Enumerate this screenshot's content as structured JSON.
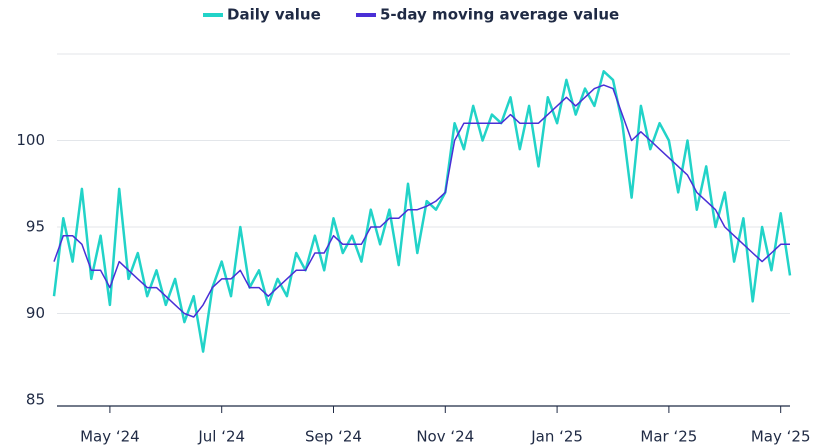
{
  "chart_data": {
    "type": "line",
    "categories": [
      null,
      null,
      null,
      null,
      null,
      null,
      "May ‘24",
      null,
      null,
      null,
      null,
      null,
      null,
      null,
      null,
      null,
      null,
      null,
      "Jul ‘24",
      null,
      null,
      null,
      null,
      null,
      null,
      null,
      null,
      null,
      null,
      null,
      "Sep ‘24",
      null,
      null,
      null,
      null,
      null,
      null,
      null,
      null,
      null,
      null,
      null,
      "Nov ‘24",
      null,
      null,
      null,
      null,
      null,
      null,
      null,
      null,
      null,
      null,
      null,
      "Jan ‘25",
      null,
      null,
      null,
      null,
      null,
      null,
      null,
      null,
      null,
      null,
      null,
      "Mar ‘25",
      null,
      null,
      null,
      null,
      null,
      null,
      null,
      null,
      null,
      null,
      null,
      "May ‘25",
      null
    ],
    "series": [
      {
        "name": "Daily value",
        "color": "#22d3c8",
        "values": [
          91,
          95.5,
          93,
          97.2,
          92,
          94.5,
          90.5,
          97.2,
          92,
          93.5,
          91,
          92.5,
          90.5,
          92,
          89.5,
          91,
          87.8,
          91.5,
          93,
          91,
          95,
          91.5,
          92.5,
          90.5,
          92,
          91,
          93.5,
          92.5,
          94.5,
          92.5,
          95.5,
          93.5,
          94.5,
          93,
          96,
          94,
          96,
          92.8,
          97.5,
          93.5,
          96.5,
          96,
          97,
          101,
          99.5,
          102,
          100,
          101.5,
          101,
          102.5,
          99.5,
          102,
          98.5,
          102.5,
          101,
          103.5,
          101.5,
          103,
          102,
          104,
          103.5,
          101,
          96.7,
          102,
          99.5,
          101,
          100,
          97,
          100,
          96,
          98.5,
          95,
          97,
          93,
          95.5,
          90.7,
          95,
          92.5,
          95.8,
          92.2
        ]
      },
      {
        "name": "5-day moving average value",
        "color": "#4a2fd6",
        "values": [
          93,
          94.5,
          94.5,
          94,
          92.5,
          92.5,
          91.5,
          93,
          92.5,
          92,
          91.5,
          91.5,
          91,
          90.5,
          90,
          89.8,
          90.5,
          91.5,
          92,
          92,
          92.5,
          91.5,
          91.5,
          91,
          91.5,
          92,
          92.5,
          92.5,
          93.5,
          93.5,
          94.5,
          94,
          94,
          94,
          95,
          95,
          95.5,
          95.5,
          96,
          96,
          96.2,
          96.5,
          97,
          100,
          101,
          101,
          101,
          101,
          101,
          101.5,
          101,
          101,
          101,
          101.5,
          102,
          102.5,
          102,
          102.5,
          103,
          103.2,
          103,
          101.5,
          100,
          100.5,
          100,
          99.5,
          99,
          98.5,
          98,
          97,
          96.5,
          96,
          95,
          94.5,
          94,
          93.5,
          93,
          93.5,
          94,
          94
        ]
      }
    ],
    "ylim": [
      85,
      105
    ],
    "yticks": [
      85,
      90,
      95,
      100
    ],
    "grid": true
  }
}
